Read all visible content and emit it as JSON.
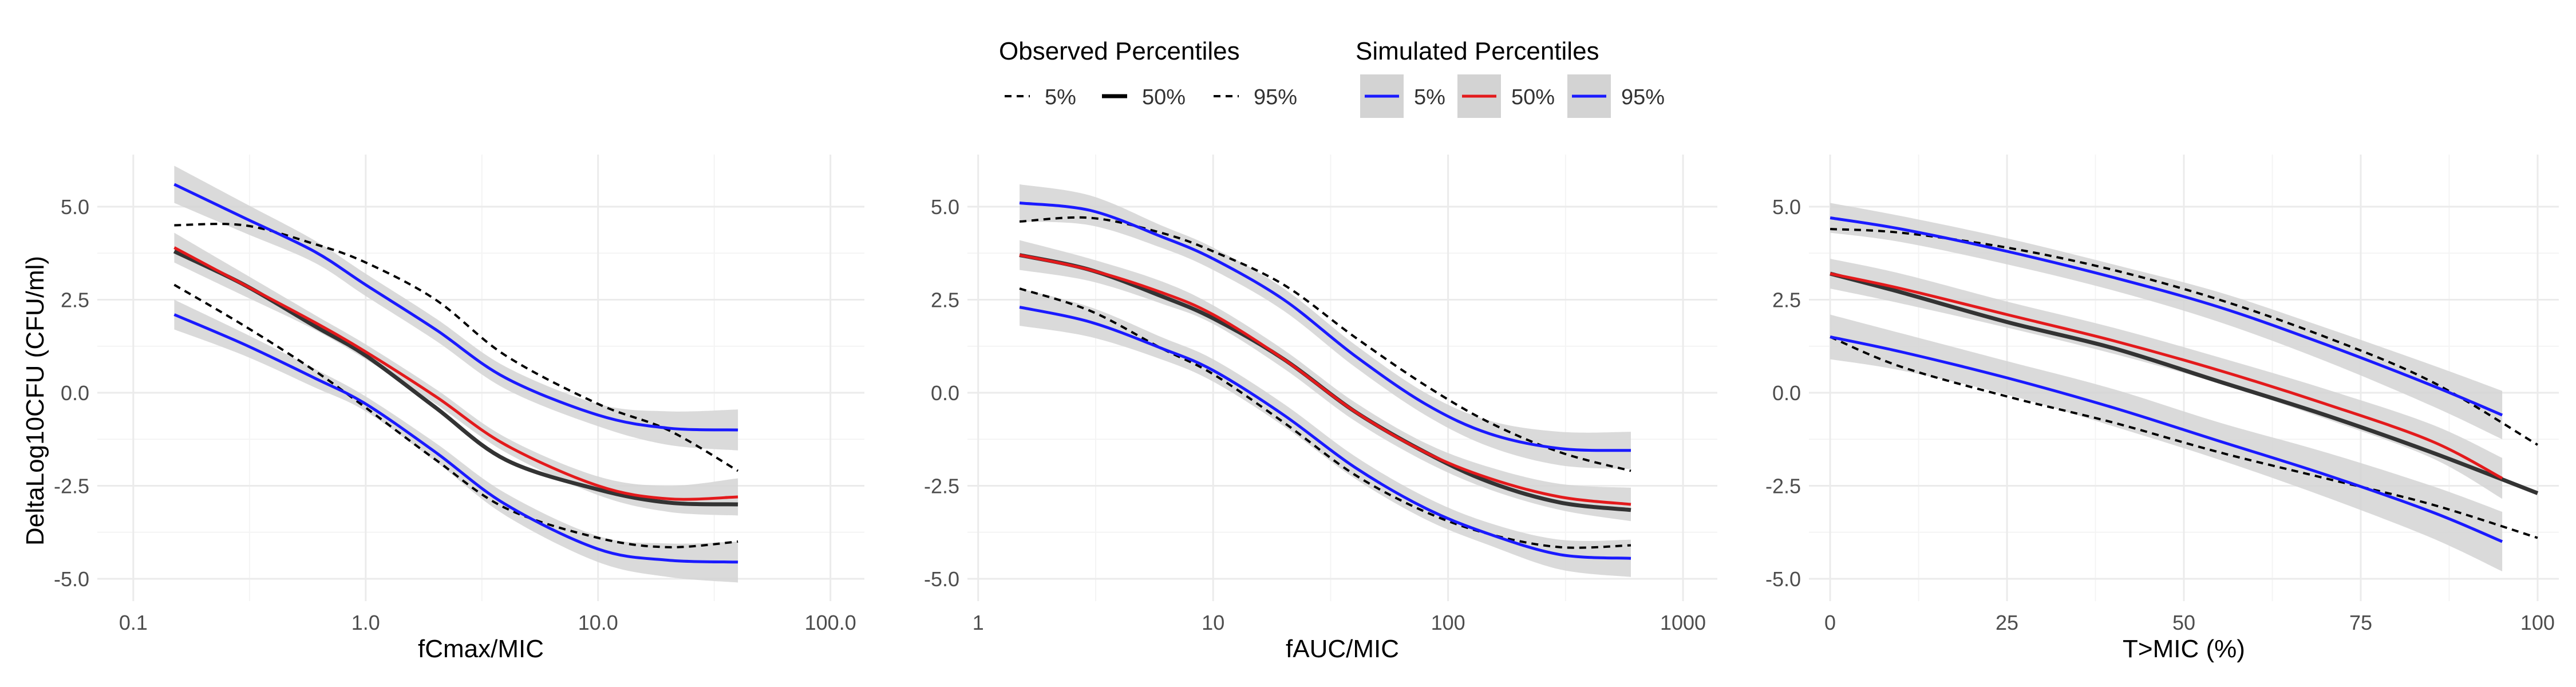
{
  "legend": {
    "observed_title": "Observed Percentiles",
    "simulated_title": "Simulated Percentiles",
    "observed_items": [
      {
        "label": "5%",
        "dash": "dashed"
      },
      {
        "label": "50%",
        "dash": "solid"
      },
      {
        "label": "95%",
        "dash": "dashed"
      }
    ],
    "simulated_items": [
      {
        "label": "5%",
        "color": "#1a1aff"
      },
      {
        "label": "50%",
        "color": "#e31a1c"
      },
      {
        "label": "95%",
        "color": "#1a1aff"
      }
    ]
  },
  "colors": {
    "observed": "#000000",
    "simulated_5": "#1a1aff",
    "simulated_50": "#e31a1c",
    "simulated_95": "#1a1aff",
    "ribbon": "#d3d3d3",
    "grid": "#ebebeb"
  },
  "ylabel": "DeltaLog10CFU (CFU/ml)",
  "chart_data": [
    {
      "type": "line",
      "xlabel": "fCmax/MIC",
      "xscale": "log10",
      "xlim": [
        0.07,
        140
      ],
      "ylim": [
        -5.6,
        6.4
      ],
      "xticks": [
        0.1,
        1,
        10,
        100
      ],
      "xtick_labels": [
        "0.1",
        "1.0",
        "10.0",
        "100.0"
      ],
      "yticks": [
        -5,
        -2.5,
        0,
        2.5,
        5
      ],
      "ytick_labels": [
        "-5.0",
        "-2.5",
        "0.0",
        "2.5",
        "5.0"
      ],
      "series": [
        {
          "name": "Observed 5%",
          "group": "observed",
          "x": [
            0.15,
            0.3,
            0.6,
            1,
            2,
            4,
            10,
            20,
            40
          ],
          "y": [
            2.9,
            1.8,
            0.6,
            -0.4,
            -1.8,
            -3.1,
            -3.9,
            -4.15,
            -4.0
          ]
        },
        {
          "name": "Observed 50%",
          "group": "observed",
          "x": [
            0.15,
            0.3,
            0.6,
            1,
            2,
            4,
            10,
            20,
            40
          ],
          "y": [
            3.8,
            2.9,
            1.8,
            1.0,
            -0.4,
            -1.8,
            -2.6,
            -2.95,
            -3.0
          ]
        },
        {
          "name": "Observed 95%",
          "group": "observed",
          "x": [
            0.15,
            0.3,
            0.6,
            1,
            2,
            4,
            10,
            20,
            40
          ],
          "y": [
            4.5,
            4.5,
            4.0,
            3.5,
            2.5,
            1.0,
            -0.3,
            -1.0,
            -2.1
          ]
        },
        {
          "name": "Simulated 5%",
          "group": "simulated_5",
          "x": [
            0.15,
            0.3,
            0.6,
            1,
            2,
            4,
            10,
            20,
            40
          ],
          "y": [
            2.1,
            1.3,
            0.4,
            -0.3,
            -1.6,
            -3.0,
            -4.2,
            -4.5,
            -4.55
          ],
          "lower": [
            1.7,
            1.0,
            0.15,
            -0.5,
            -1.85,
            -3.3,
            -4.55,
            -4.95,
            -5.1
          ],
          "upper": [
            2.5,
            1.6,
            0.65,
            -0.1,
            -1.35,
            -2.7,
            -3.85,
            -4.05,
            -4.0
          ]
        },
        {
          "name": "Simulated 50%",
          "group": "simulated_50",
          "x": [
            0.15,
            0.3,
            0.6,
            1,
            2,
            4,
            10,
            20,
            40
          ],
          "y": [
            3.9,
            2.9,
            1.9,
            1.1,
            -0.1,
            -1.4,
            -2.5,
            -2.85,
            -2.8
          ],
          "lower": [
            3.5,
            2.6,
            1.7,
            0.9,
            -0.3,
            -1.6,
            -2.75,
            -3.2,
            -3.3
          ],
          "upper": [
            4.3,
            3.2,
            2.1,
            1.3,
            0.1,
            -1.2,
            -2.25,
            -2.5,
            -2.3
          ]
        },
        {
          "name": "Simulated 95%",
          "group": "simulated_95",
          "x": [
            0.15,
            0.3,
            0.6,
            1,
            2,
            4,
            10,
            20,
            40
          ],
          "y": [
            5.6,
            4.7,
            3.8,
            2.9,
            1.7,
            0.4,
            -0.6,
            -0.95,
            -1.0
          ],
          "lower": [
            5.1,
            4.3,
            3.5,
            2.6,
            1.4,
            0.1,
            -0.9,
            -1.4,
            -1.55
          ],
          "upper": [
            6.1,
            5.1,
            4.1,
            3.2,
            2.0,
            0.7,
            -0.3,
            -0.5,
            -0.45
          ]
        }
      ]
    },
    {
      "type": "line",
      "xlabel": "fAUC/MIC",
      "xscale": "log10",
      "xlim": [
        0.9,
        1400
      ],
      "ylim": [
        -5.6,
        6.4
      ],
      "xticks": [
        1,
        10,
        100,
        1000
      ],
      "xtick_labels": [
        "1",
        "10",
        "100",
        "1000"
      ],
      "yticks": [
        -5,
        -2.5,
        0,
        2.5,
        5
      ],
      "ytick_labels": [
        "-5.0",
        "-2.5",
        "0.0",
        "2.5",
        "5.0"
      ],
      "series": [
        {
          "name": "Observed 5%",
          "group": "observed",
          "x": [
            1.5,
            3,
            6,
            10,
            20,
            40,
            80,
            150,
            300,
            600
          ],
          "y": [
            2.8,
            2.2,
            1.2,
            0.5,
            -0.8,
            -2.2,
            -3.2,
            -3.8,
            -4.15,
            -4.1
          ]
        },
        {
          "name": "Observed 50%",
          "group": "observed",
          "x": [
            1.5,
            3,
            6,
            10,
            20,
            40,
            80,
            150,
            300,
            600
          ],
          "y": [
            3.7,
            3.3,
            2.6,
            2.0,
            0.9,
            -0.5,
            -1.6,
            -2.4,
            -2.95,
            -3.15
          ]
        },
        {
          "name": "Observed 95%",
          "group": "observed",
          "x": [
            1.5,
            3,
            6,
            10,
            20,
            40,
            80,
            150,
            300,
            600
          ],
          "y": [
            4.6,
            4.7,
            4.3,
            3.8,
            2.9,
            1.5,
            0.2,
            -0.8,
            -1.6,
            -2.1
          ]
        },
        {
          "name": "Simulated 5%",
          "group": "simulated_5",
          "x": [
            1.5,
            3,
            6,
            10,
            20,
            40,
            80,
            150,
            300,
            600
          ],
          "y": [
            2.3,
            1.9,
            1.2,
            0.6,
            -0.6,
            -2.0,
            -3.1,
            -3.8,
            -4.35,
            -4.45
          ],
          "lower": [
            1.8,
            1.5,
            0.9,
            0.3,
            -0.9,
            -2.3,
            -3.4,
            -4.1,
            -4.75,
            -4.95
          ],
          "upper": [
            2.8,
            2.3,
            1.5,
            0.9,
            -0.3,
            -1.7,
            -2.8,
            -3.5,
            -3.95,
            -3.95
          ]
        },
        {
          "name": "Simulated 50%",
          "group": "simulated_50",
          "x": [
            1.5,
            3,
            6,
            10,
            20,
            40,
            80,
            150,
            300,
            600
          ],
          "y": [
            3.7,
            3.3,
            2.7,
            2.1,
            0.9,
            -0.5,
            -1.6,
            -2.3,
            -2.8,
            -3.0
          ],
          "lower": [
            3.3,
            3.0,
            2.4,
            1.85,
            0.65,
            -0.75,
            -1.85,
            -2.6,
            -3.15,
            -3.45
          ],
          "upper": [
            4.1,
            3.6,
            3.0,
            2.35,
            1.15,
            -0.25,
            -1.35,
            -2.0,
            -2.45,
            -2.55
          ]
        },
        {
          "name": "Simulated 95%",
          "group": "simulated_95",
          "x": [
            1.5,
            3,
            6,
            10,
            20,
            40,
            80,
            150,
            300,
            600
          ],
          "y": [
            5.1,
            4.9,
            4.2,
            3.6,
            2.5,
            1.0,
            -0.3,
            -1.1,
            -1.5,
            -1.55
          ],
          "lower": [
            4.6,
            4.5,
            3.9,
            3.3,
            2.2,
            0.7,
            -0.6,
            -1.45,
            -1.95,
            -2.05
          ],
          "upper": [
            5.6,
            5.3,
            4.5,
            3.9,
            2.8,
            1.3,
            0.0,
            -0.75,
            -1.05,
            -1.05
          ]
        }
      ]
    },
    {
      "type": "line",
      "xlabel": "T>MIC (%)",
      "xscale": "linear",
      "xlim": [
        -3,
        103
      ],
      "ylim": [
        -5.6,
        6.4
      ],
      "xticks": [
        0,
        25,
        50,
        75,
        100
      ],
      "xtick_labels": [
        "0",
        "25",
        "50",
        "75",
        "100"
      ],
      "yticks": [
        -5,
        -2.5,
        0,
        2.5,
        5
      ],
      "ytick_labels": [
        "-5.0",
        "-2.5",
        "0.0",
        "2.5",
        "5.0"
      ],
      "series": [
        {
          "name": "Observed 5%",
          "group": "observed",
          "x": [
            0,
            10,
            25,
            40,
            55,
            70,
            85,
            100
          ],
          "y": [
            1.5,
            0.7,
            -0.1,
            -0.8,
            -1.6,
            -2.3,
            -3.0,
            -3.9
          ]
        },
        {
          "name": "Observed 50%",
          "group": "observed",
          "x": [
            0,
            10,
            25,
            40,
            55,
            70,
            85,
            100
          ],
          "y": [
            3.2,
            2.7,
            1.9,
            1.2,
            0.3,
            -0.6,
            -1.6,
            -2.7
          ]
        },
        {
          "name": "Observed 95%",
          "group": "observed",
          "x": [
            0,
            10,
            25,
            40,
            55,
            70,
            85,
            100
          ],
          "y": [
            4.4,
            4.3,
            3.9,
            3.3,
            2.5,
            1.5,
            0.3,
            -1.4
          ]
        },
        {
          "name": "Simulated 5%",
          "group": "simulated_5",
          "x": [
            0,
            10,
            25,
            40,
            55,
            70,
            85,
            95
          ],
          "y": [
            1.5,
            1.1,
            0.4,
            -0.4,
            -1.3,
            -2.2,
            -3.2,
            -4.0
          ],
          "lower": [
            0.9,
            0.6,
            -0.05,
            -0.9,
            -1.8,
            -2.8,
            -3.9,
            -4.8
          ],
          "upper": [
            2.1,
            1.6,
            0.85,
            0.1,
            -0.8,
            -1.6,
            -2.5,
            -3.2
          ]
        },
        {
          "name": "Simulated 50%",
          "group": "simulated_50",
          "x": [
            0,
            10,
            25,
            40,
            55,
            70,
            85,
            95
          ],
          "y": [
            3.2,
            2.8,
            2.1,
            1.4,
            0.6,
            -0.3,
            -1.3,
            -2.3
          ],
          "lower": [
            2.8,
            2.4,
            1.75,
            1.05,
            0.25,
            -0.7,
            -1.75,
            -2.85
          ],
          "upper": [
            3.6,
            3.2,
            2.45,
            1.75,
            0.95,
            0.1,
            -0.85,
            -1.75
          ]
        },
        {
          "name": "Simulated 95%",
          "group": "simulated_95",
          "x": [
            0,
            10,
            25,
            40,
            55,
            70,
            85,
            95
          ],
          "y": [
            4.7,
            4.4,
            3.8,
            3.1,
            2.3,
            1.3,
            0.2,
            -0.6
          ],
          "lower": [
            4.3,
            4.05,
            3.45,
            2.75,
            1.9,
            0.85,
            -0.35,
            -1.25
          ],
          "upper": [
            5.1,
            4.75,
            4.15,
            3.45,
            2.7,
            1.75,
            0.75,
            0.05
          ]
        }
      ]
    }
  ]
}
